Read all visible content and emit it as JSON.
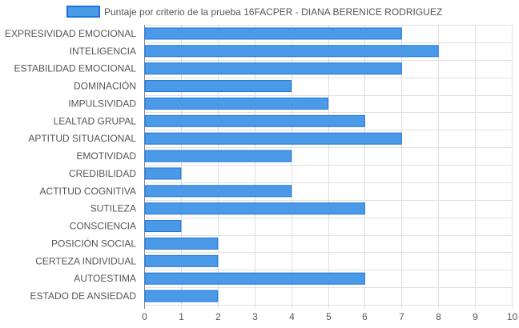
{
  "chart_data": {
    "type": "bar",
    "orientation": "horizontal",
    "categories": [
      "EXPRESIVIDAD EMOCIONAL",
      "INTELIGENCIA",
      "ESTABILIDAD EMOCIONAL",
      "DOMINACIÓN",
      "IMPULSIVIDAD",
      "LEALTAD GRUPAL",
      "APTITUD SITUACIONAL",
      "EMOTIVIDAD",
      "CREDIBILIDAD",
      "ACTITUD COGNITIVA",
      "SUTILEZA",
      "CONSCIENCIA",
      "POSICIÓN SOCIAL",
      "CERTEZA INDIVIDUAL",
      "AUTOESTIMA",
      "ESTADO DE ANSIEDAD"
    ],
    "series": [
      {
        "name": "Puntaje por criterio de la prueba 16FACPER - DIANA BERENICE RODRIGUEZ",
        "values": [
          7,
          8,
          7,
          4,
          5,
          6,
          7,
          4,
          1,
          4,
          6,
          1,
          2,
          2,
          6,
          2
        ],
        "color": "#4b9ae8",
        "border_color": "#1e73d8"
      }
    ],
    "xlim": [
      0,
      10
    ],
    "xticks": [
      "0",
      "1",
      "2",
      "3",
      "4",
      "5",
      "6",
      "7",
      "8",
      "9",
      "10"
    ],
    "grid": true,
    "legend_position": "top-center",
    "grid_color": "#e0e0e0"
  }
}
